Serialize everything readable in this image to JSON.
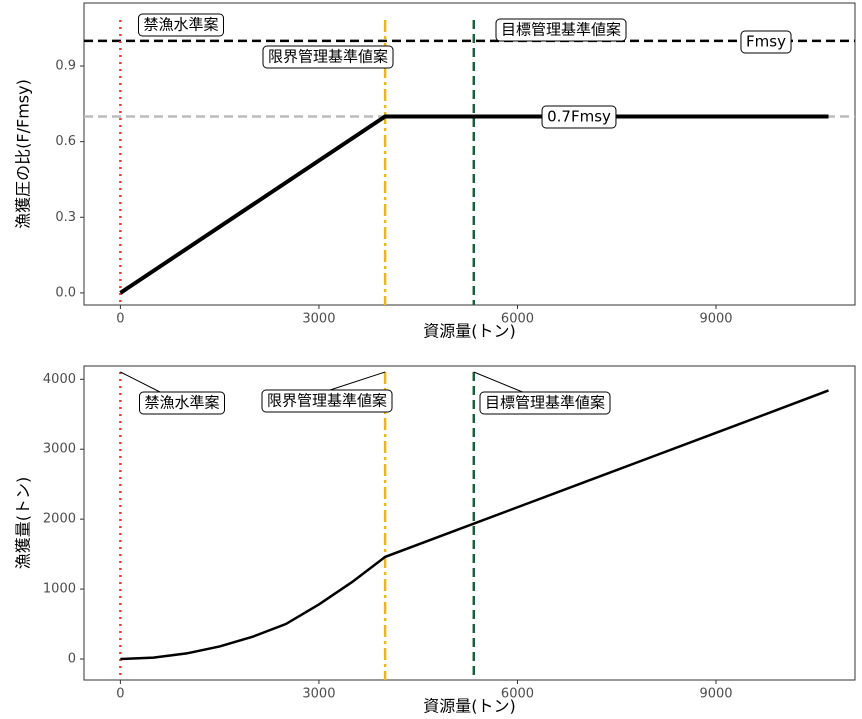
{
  "chart_data": [
    {
      "type": "line",
      "xlabel": "資源量(トン)",
      "ylabel": "漁獲圧の比(F/Fmsy)",
      "xlim": [
        -550,
        11100
      ],
      "ylim": [
        -0.048,
        1.15
      ],
      "xticks": [
        0,
        3000,
        6000,
        9000
      ],
      "yticks": [
        {
          "value": 0,
          "label": "0.0"
        },
        0.3,
        0.6,
        0.9
      ],
      "x": [
        0,
        4000,
        10700
      ],
      "values": [
        0,
        0.7,
        0.7
      ],
      "color": "#000000",
      "vlines": [
        {
          "x": 0,
          "label": "禁漁水準案",
          "color": "#d7433a",
          "dash": "dotted"
        },
        {
          "x": 4000,
          "label": "限界管理基準値案",
          "color": "#e6b820",
          "dash": "dashdot"
        },
        {
          "x": 5340,
          "label": "目標管理基準値案",
          "color": "#1a6040",
          "dash": "dashed"
        }
      ],
      "hlines": [
        {
          "y": 1,
          "label": "Fmsy",
          "color": "#000000",
          "dash": "dashed"
        },
        {
          "y": 0.7,
          "label": "0.7Fmsy",
          "color": "#bbbbbb",
          "dash": "dashed"
        }
      ]
    },
    {
      "type": "line",
      "xlabel": "資源量(トン)",
      "ylabel": "漁獲量(トン)",
      "xlim": [
        -550,
        11100
      ],
      "ylim": [
        -300,
        4190
      ],
      "xticks": [
        0,
        3000,
        6000,
        9000
      ],
      "yticks": [
        0,
        1000,
        2000,
        3000,
        4000
      ],
      "x": [
        0,
        500,
        1000,
        1500,
        2000,
        2500,
        3000,
        3500,
        4000,
        5000,
        6000,
        7000,
        8000,
        9000,
        10000,
        10700
      ],
      "values": [
        0,
        20,
        80,
        180,
        320,
        500,
        780,
        1100,
        1460,
        1815,
        2170,
        2525,
        2880,
        3235,
        3590,
        3840
      ],
      "color": "#000000",
      "vlines": [
        {
          "x": 0,
          "label": "禁漁水準案",
          "color": "#d7433a",
          "dash": "dotted"
        },
        {
          "x": 4000,
          "label": "限界管理基準値案",
          "color": "#e6b820",
          "dash": "dashdot"
        },
        {
          "x": 5340,
          "label": "目標管理基準値案",
          "color": "#1a6040",
          "dash": "dashed"
        }
      ]
    }
  ]
}
